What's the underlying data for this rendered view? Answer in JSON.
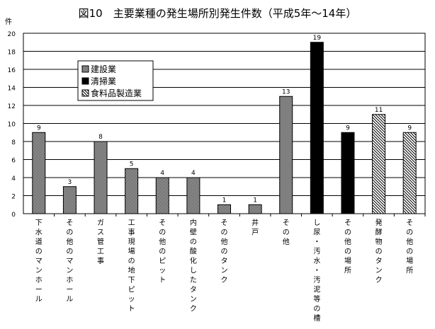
{
  "chart_data": {
    "type": "bar",
    "title": "図10　主要業種の発生場所別発生件数（平成5年～14年）",
    "ylabel": "件",
    "xlabel": "",
    "ylim": [
      0,
      20
    ],
    "yticks": [
      0,
      2,
      4,
      6,
      8,
      10,
      12,
      14,
      16,
      18,
      20
    ],
    "grid": true,
    "legend_position": "upper-left",
    "categories": [
      "下水道のマンホール",
      "その他のマンホール",
      "ガス管工事",
      "工事現場の地下ピット",
      "その他のピット",
      "内壁の酸化したタンク",
      "その他のタンク",
      "井戸",
      "その他",
      "し尿・汚水・汚泥等の槽",
      "その他の場所",
      "発酵物のタンク",
      "その他の場所"
    ],
    "values": [
      9,
      3,
      8,
      5,
      4,
      4,
      1,
      1,
      13,
      19,
      9,
      11,
      9
    ],
    "series_of_category": [
      0,
      0,
      0,
      0,
      0,
      0,
      0,
      0,
      0,
      1,
      1,
      2,
      2
    ],
    "series": [
      {
        "name": "建設業",
        "pattern": "checker"
      },
      {
        "name": "清掃業",
        "pattern": "solid",
        "color": "#000000"
      },
      {
        "name": "食料品製造業",
        "pattern": "diagonal"
      }
    ]
  }
}
